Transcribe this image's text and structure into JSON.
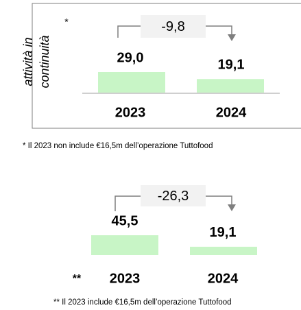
{
  "chart_data": [
    {
      "type": "bar",
      "y_label": [
        "attività in",
        "continuità"
      ],
      "marker": "*",
      "categories": [
        "2023",
        "2024"
      ],
      "values": [
        29.0,
        19.1
      ],
      "value_labels": [
        "29,0",
        "19,1"
      ],
      "color": "#c8f5c6",
      "annotation": "-9,8",
      "footnote": "* Il 2023 non include €16,5m dell’operazione Tuttofood"
    },
    {
      "type": "bar",
      "marker": "**",
      "categories": [
        "2023",
        "2024"
      ],
      "values": [
        45.5,
        19.1
      ],
      "value_labels": [
        "45,5",
        "19,1"
      ],
      "color": "#c8f5c6",
      "annotation": "-26,3",
      "footnote": "** Il 2023 include €16,5m dell’operazione Tuttofood"
    }
  ]
}
